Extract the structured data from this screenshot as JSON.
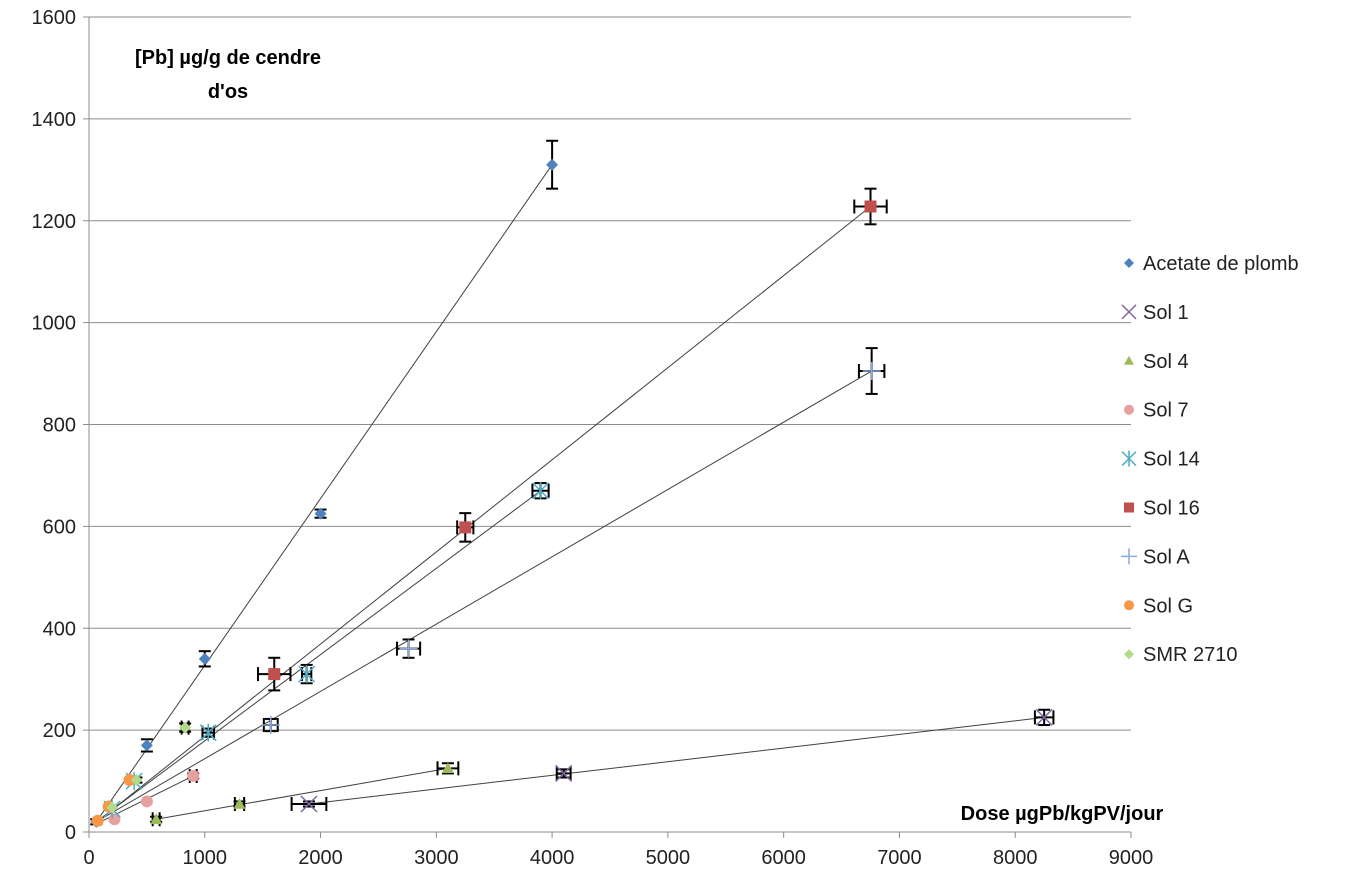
{
  "chart_data": {
    "type": "scatter",
    "title": "",
    "ylabel_line1": "[Pb] µg/g de cendre",
    "ylabel_line2": "d'os",
    "xlabel": "Dose µgPb/kgPV/jour",
    "xlim": [
      0,
      9000
    ],
    "ylim": [
      0,
      1600
    ],
    "xticks": [
      "0",
      "1000",
      "2000",
      "3000",
      "4000",
      "5000",
      "6000",
      "7000",
      "8000",
      "9000"
    ],
    "yticks": [
      "0",
      "200",
      "400",
      "600",
      "800",
      "1000",
      "1200",
      "1400",
      "1600"
    ],
    "grid": "horizontal",
    "legend_position": "right",
    "error_bar_color": "#000000",
    "trend_line_color": "#404040",
    "series": [
      {
        "name": "Acetate de plomb",
        "marker": "diamond",
        "color": "#4F81BD",
        "x": [
          63,
          500,
          1000,
          2000,
          4000
        ],
        "y": [
          20,
          170,
          340,
          625,
          1310
        ],
        "xerr": [
          0,
          0,
          0,
          0,
          0
        ],
        "yerr": [
          5,
          12,
          15,
          8,
          47
        ]
      },
      {
        "name": "Sol 1",
        "marker": "x",
        "color": "#8064A2",
        "x": [
          1900,
          4100,
          8250
        ],
        "y": [
          55,
          115,
          225
        ],
        "xerr": [
          150,
          60,
          80
        ],
        "yerr": [
          5,
          8,
          15
        ]
      },
      {
        "name": "Sol 4",
        "marker": "triangle",
        "color": "#9BBB59",
        "x": [
          580,
          1300,
          3100
        ],
        "y": [
          25,
          55,
          125
        ],
        "xerr": [
          30,
          40,
          90
        ],
        "yerr": [
          5,
          5,
          10
        ]
      },
      {
        "name": "Sol 7",
        "marker": "circle",
        "color": "#E6A0A0",
        "x": [
          220,
          500,
          900
        ],
        "y": [
          25,
          60,
          110
        ],
        "xerr": [
          0,
          0,
          30
        ],
        "yerr": [
          0,
          0,
          5
        ]
      },
      {
        "name": "Sol 14",
        "marker": "asterisk",
        "color": "#4BACC6",
        "x": [
          200,
          390,
          1030,
          1880,
          3900
        ],
        "y": [
          45,
          100,
          195,
          310,
          670
        ],
        "xerr": [
          0,
          0,
          50,
          40,
          70
        ],
        "yerr": [
          0,
          0,
          8,
          18,
          15
        ]
      },
      {
        "name": "Sol 16",
        "marker": "square",
        "color": "#C0504D",
        "x": [
          1600,
          3250,
          6750
        ],
        "y": [
          310,
          598,
          1228
        ],
        "xerr": [
          140,
          70,
          140
        ],
        "yerr": [
          32,
          28,
          35
        ]
      },
      {
        "name": "Sol A",
        "marker": "plus",
        "color": "#8EA9DB",
        "x": [
          1570,
          2760,
          6760
        ],
        "y": [
          210,
          360,
          905
        ],
        "xerr": [
          60,
          100,
          110
        ],
        "yerr": [
          12,
          18,
          45
        ]
      },
      {
        "name": "Sol G",
        "marker": "circle",
        "color": "#F79646",
        "x": [
          75,
          170,
          350
        ],
        "y": [
          22,
          50,
          102
        ],
        "xerr": [
          0,
          0,
          0
        ],
        "yerr": [
          0,
          0,
          0
        ]
      },
      {
        "name": "SMR 2710",
        "marker": "diamond",
        "color": "#B3D98C",
        "x": [
          200,
          410,
          830
        ],
        "y": [
          48,
          102,
          205
        ],
        "xerr": [
          0,
          0,
          30
        ],
        "yerr": [
          0,
          5,
          8
        ]
      }
    ],
    "trend_lines": [
      {
        "x": [
          63,
          4000
        ],
        "y": [
          20,
          1310
        ]
      },
      {
        "x": [
          70,
          6750
        ],
        "y": [
          20,
          1228
        ]
      },
      {
        "x": [
          120,
          3900
        ],
        "y": [
          30,
          670
        ]
      },
      {
        "x": [
          100,
          6760
        ],
        "y": [
          25,
          905
        ]
      },
      {
        "x": [
          100,
          900
        ],
        "y": [
          20,
          110
        ]
      },
      {
        "x": [
          580,
          3100
        ],
        "y": [
          25,
          125
        ]
      },
      {
        "x": [
          1900,
          8250
        ],
        "y": [
          55,
          225
        ]
      }
    ]
  }
}
